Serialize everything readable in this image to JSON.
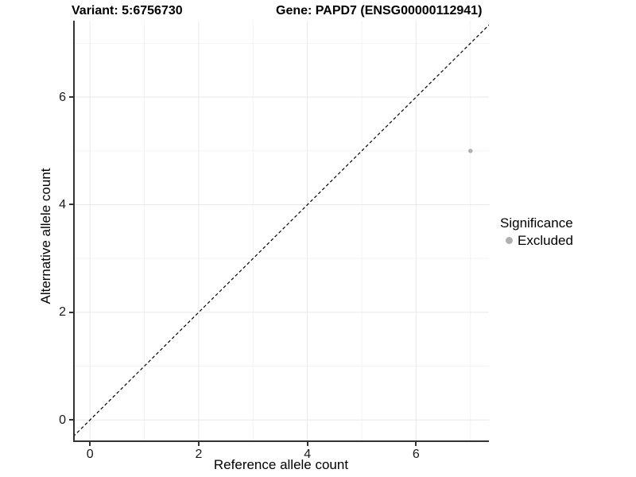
{
  "header": {
    "variant_title": "Variant: 5:6756730",
    "gene_title": "Gene: PAPD7 (ENSG00000112941)"
  },
  "legend": {
    "title": "Significance",
    "items": [
      {
        "label": "Excluded",
        "color": "#b0b0b0"
      }
    ]
  },
  "chart_data": {
    "type": "scatter",
    "title": "Variant: 5:6756730",
    "subtitle": "Gene: PAPD7 (ENSG00000112941)",
    "xlabel": "Reference allele count",
    "ylabel": "Alternative allele count",
    "xlim": [
      -0.31,
      7.34
    ],
    "ylim": [
      -0.41,
      7.42
    ],
    "x_major_ticks": [
      0,
      2,
      4,
      6
    ],
    "y_major_ticks": [
      0,
      2,
      4,
      6
    ],
    "x_minor_gridlines": [
      1,
      3,
      5,
      7
    ],
    "y_minor_gridlines": [
      1,
      3,
      5,
      7
    ],
    "grid": "on",
    "legend_position": "right",
    "legend_title": "Significance",
    "series": [
      {
        "name": "Excluded",
        "color": "#b0b0b0",
        "points": [
          {
            "x": 7,
            "y": 5
          }
        ]
      }
    ],
    "reference_line": {
      "equation": "y = x",
      "style": "dashed",
      "color": "#000000"
    },
    "colors": {
      "background": "#ffffff",
      "grid_major": "#e9e9e9",
      "grid_minor": "#f3f3f3",
      "axis_line": "#333333",
      "point": "#b0b0b0"
    }
  }
}
